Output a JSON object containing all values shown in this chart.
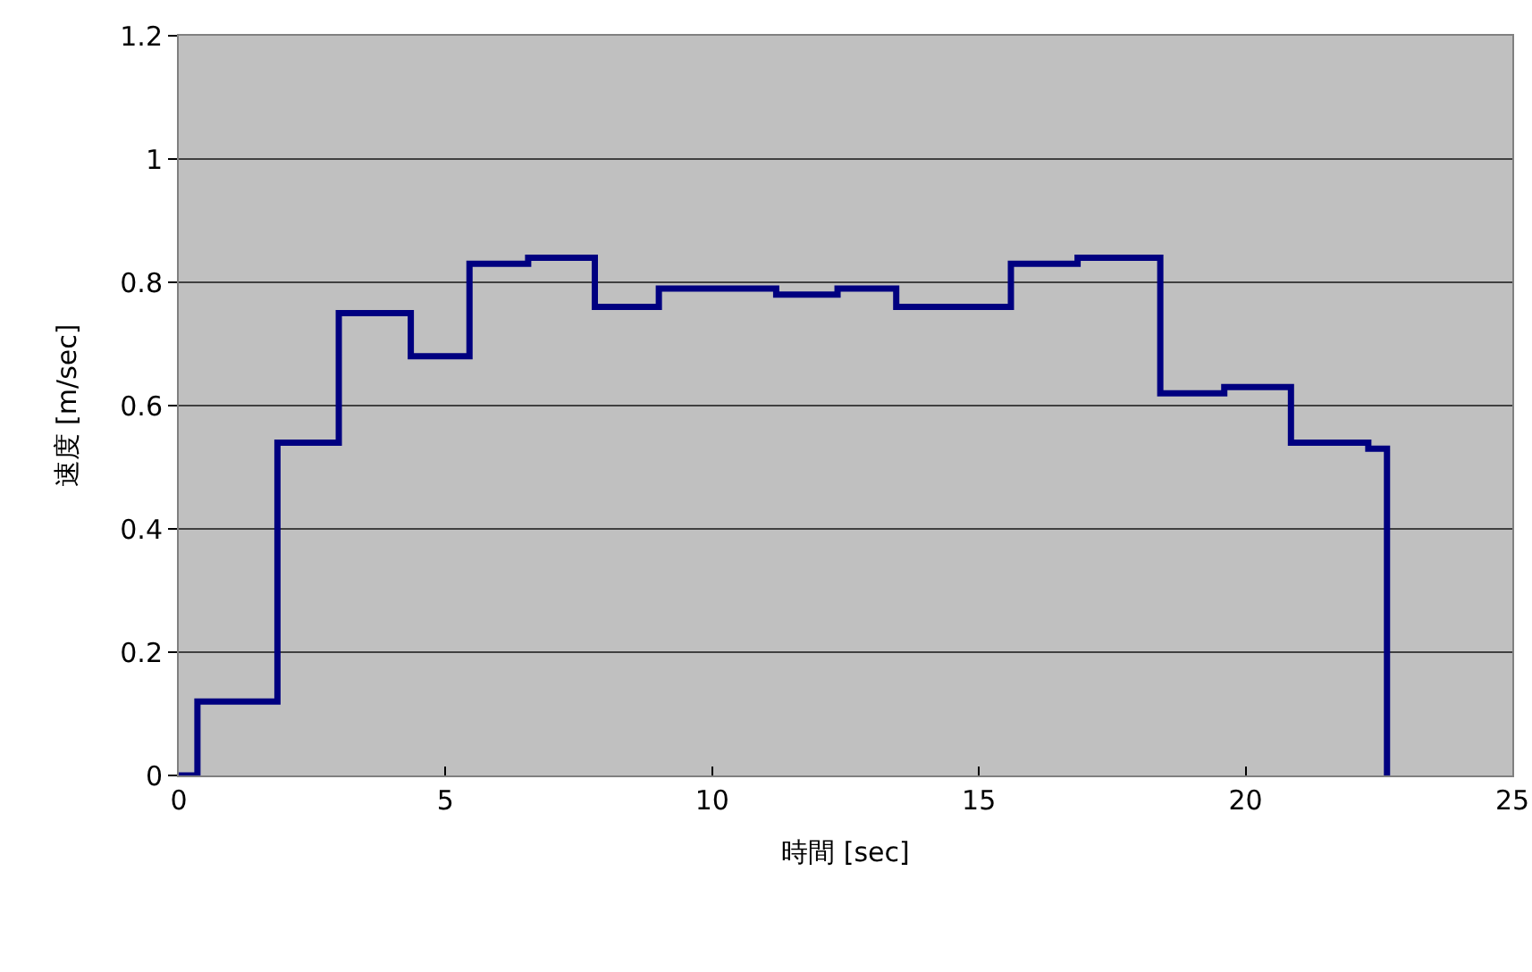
{
  "chart_data": {
    "type": "step",
    "xlabel": "時間 [sec]",
    "ylabel": "速度 [m/sec]",
    "x": [
      0,
      0.35,
      1.85,
      3.0,
      4.35,
      5.45,
      6.55,
      7.8,
      9.0,
      11.2,
      12.35,
      13.45,
      15.6,
      16.85,
      18.4,
      19.6,
      20.85,
      22.3,
      22.65
    ],
    "series": [
      {
        "color": "#000080",
        "values": [
          0,
          0.12,
          0.54,
          0.75,
          0.68,
          0.83,
          0.84,
          0.76,
          0.79,
          0.78,
          0.79,
          0.76,
          0.83,
          0.84,
          0.62,
          0.63,
          0.54,
          0.53,
          0
        ]
      }
    ],
    "xlim": [
      0,
      25
    ],
    "xticks": [
      0,
      5,
      10,
      15,
      20,
      25
    ],
    "ylim": [
      0,
      1.2
    ],
    "yticks": [
      0,
      0.2,
      0.4,
      0.6,
      0.8,
      1,
      1.2
    ],
    "grid": "y",
    "marker": "none",
    "line_style": "solid"
  }
}
